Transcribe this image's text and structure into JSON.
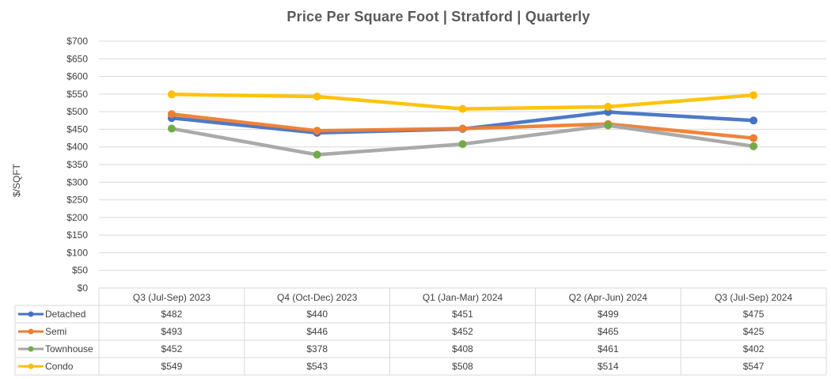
{
  "chart_data": {
    "type": "line",
    "title": "Price Per Square Foot | Stratford | Quarterly",
    "ylabel": "$/SQFT",
    "xlabel": "",
    "ylim": [
      0,
      700
    ],
    "y_ticks": [
      "$0",
      "$50",
      "$100",
      "$150",
      "$200",
      "$250",
      "$300",
      "$350",
      "$400",
      "$450",
      "$500",
      "$550",
      "$600",
      "$650",
      "$700"
    ],
    "grid": true,
    "legend": "data-table-below",
    "categories": [
      "Q3 (Jul-Sep) 2023",
      "Q4 (Oct-Dec) 2023",
      "Q1 (Jan-Mar) 2024",
      "Q2 (Apr-Jun) 2024",
      "Q3 (Jul-Sep) 2024"
    ],
    "series": [
      {
        "name": "Detached",
        "color": "#4472C4",
        "values": [
          482,
          440,
          451,
          499,
          475
        ],
        "labels": [
          "$482",
          "$440",
          "$451",
          "$499",
          "$475"
        ]
      },
      {
        "name": "Semi",
        "color": "#ED7D31",
        "values": [
          493,
          446,
          452,
          465,
          425
        ],
        "labels": [
          "$493",
          "$446",
          "$452",
          "$465",
          "$425"
        ]
      },
      {
        "name": "Townhouse",
        "color": "#A5A5A5",
        "marker_color": "#70AD47",
        "values": [
          452,
          378,
          408,
          461,
          402
        ],
        "labels": [
          "$452",
          "$378",
          "$408",
          "$461",
          "$402"
        ]
      },
      {
        "name": "Condo",
        "color": "#FFC000",
        "values": [
          549,
          543,
          508,
          514,
          547
        ],
        "labels": [
          "$549",
          "$543",
          "$508",
          "$514",
          "$547"
        ]
      }
    ]
  }
}
